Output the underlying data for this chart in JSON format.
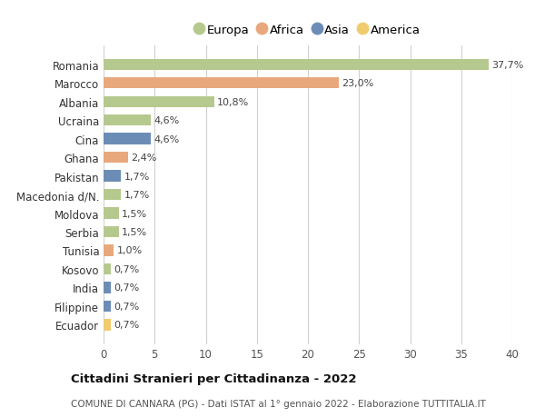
{
  "countries": [
    "Romania",
    "Marocco",
    "Albania",
    "Ucraina",
    "Cina",
    "Ghana",
    "Pakistan",
    "Macedonia d/N.",
    "Moldova",
    "Serbia",
    "Tunisia",
    "Kosovo",
    "India",
    "Filippine",
    "Ecuador"
  ],
  "values": [
    37.7,
    23.0,
    10.8,
    4.6,
    4.6,
    2.4,
    1.7,
    1.7,
    1.5,
    1.5,
    1.0,
    0.7,
    0.7,
    0.7,
    0.7
  ],
  "labels": [
    "37,7%",
    "23,0%",
    "10,8%",
    "4,6%",
    "4,6%",
    "2,4%",
    "1,7%",
    "1,7%",
    "1,5%",
    "1,5%",
    "1,0%",
    "0,7%",
    "0,7%",
    "0,7%",
    "0,7%"
  ],
  "continents": [
    "Europa",
    "Africa",
    "Europa",
    "Europa",
    "Asia",
    "Africa",
    "Asia",
    "Europa",
    "Europa",
    "Europa",
    "Africa",
    "Europa",
    "Asia",
    "Asia",
    "America"
  ],
  "colors": {
    "Europa": "#b5c98e",
    "Africa": "#e8a87c",
    "Asia": "#6b8db5",
    "America": "#f0cc6e"
  },
  "legend_order": [
    "Europa",
    "Africa",
    "Asia",
    "America"
  ],
  "xlim": [
    0,
    40
  ],
  "xticks": [
    0,
    5,
    10,
    15,
    20,
    25,
    30,
    35,
    40
  ],
  "title": "Cittadini Stranieri per Cittadinanza - 2022",
  "subtitle": "COMUNE DI CANNARA (PG) - Dati ISTAT al 1° gennaio 2022 - Elaborazione TUTTITALIA.IT",
  "background_color": "#ffffff",
  "bar_height": 0.6,
  "grid_color": "#d0d0d0"
}
